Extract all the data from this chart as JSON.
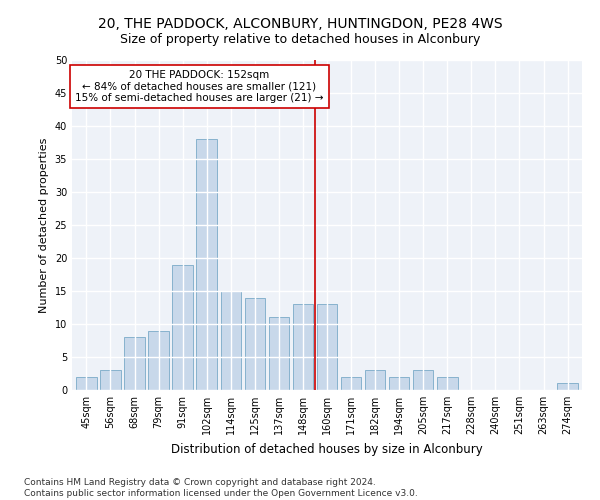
{
  "title1": "20, THE PADDOCK, ALCONBURY, HUNTINGDON, PE28 4WS",
  "title2": "Size of property relative to detached houses in Alconbury",
  "xlabel": "Distribution of detached houses by size in Alconbury",
  "ylabel": "Number of detached properties",
  "bar_color": "#c8d8ea",
  "bar_edge_color": "#7aaac8",
  "background_color": "#eef2f8",
  "grid_color": "#ffffff",
  "categories": [
    "45sqm",
    "56sqm",
    "68sqm",
    "79sqm",
    "91sqm",
    "102sqm",
    "114sqm",
    "125sqm",
    "137sqm",
    "148sqm",
    "160sqm",
    "171sqm",
    "182sqm",
    "194sqm",
    "205sqm",
    "217sqm",
    "228sqm",
    "240sqm",
    "251sqm",
    "263sqm",
    "274sqm"
  ],
  "values": [
    2,
    3,
    8,
    9,
    19,
    38,
    15,
    14,
    11,
    13,
    13,
    2,
    3,
    2,
    3,
    2,
    0,
    0,
    0,
    0,
    1
  ],
  "vline_index": 9.5,
  "vline_color": "#cc0000",
  "annotation_text": "20 THE PADDOCK: 152sqm\n← 84% of detached houses are smaller (121)\n15% of semi-detached houses are larger (21) →",
  "annotation_box_color": "#ffffff",
  "annotation_box_edge": "#cc0000",
  "ylim": [
    0,
    50
  ],
  "yticks": [
    0,
    5,
    10,
    15,
    20,
    25,
    30,
    35,
    40,
    45,
    50
  ],
  "footnote": "Contains HM Land Registry data © Crown copyright and database right 2024.\nContains public sector information licensed under the Open Government Licence v3.0.",
  "title1_fontsize": 10,
  "title2_fontsize": 9,
  "xlabel_fontsize": 8.5,
  "ylabel_fontsize": 8,
  "tick_fontsize": 7,
  "annotation_fontsize": 7.5,
  "footnote_fontsize": 6.5
}
